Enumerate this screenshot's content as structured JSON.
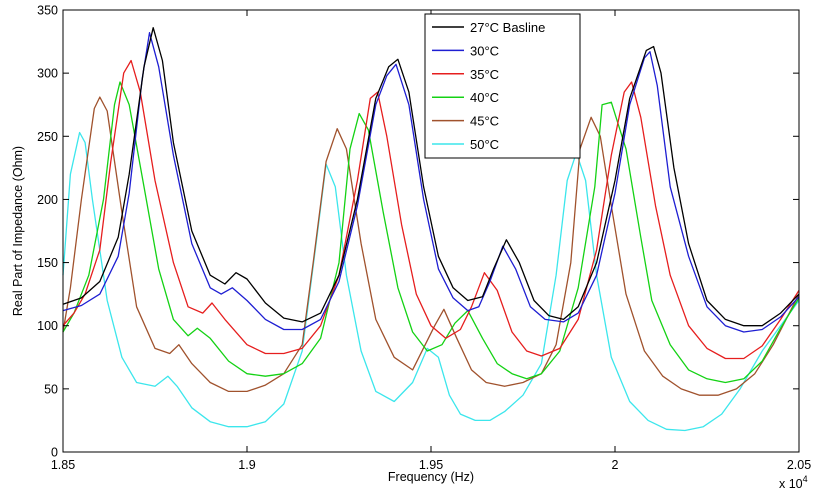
{
  "chart_data": {
    "type": "line",
    "xlabel": "Frequency (Hz)",
    "ylabel": "Real Part of Impedance (Ohm)",
    "x_exponent_label": "x 10",
    "x_exponent_power": "4",
    "xlim": [
      1.85,
      2.05
    ],
    "ylim": [
      0,
      350
    ],
    "x_ticks": [
      1.85,
      1.9,
      1.95,
      2.0,
      2.05
    ],
    "x_tick_labels": [
      "1.85",
      "1.9",
      "1.95",
      "2",
      "2.05"
    ],
    "y_ticks": [
      0,
      50,
      100,
      150,
      200,
      250,
      300,
      350
    ],
    "y_tick_labels": [
      "0",
      "50",
      "100",
      "150",
      "200",
      "250",
      "300",
      "350"
    ],
    "grid": false,
    "legend_position": "top-center",
    "series": [
      {
        "name": "27°C Basline",
        "color": "#000000",
        "x": [
          1.85,
          1.855,
          1.86,
          1.865,
          1.868,
          1.872,
          1.8745,
          1.877,
          1.88,
          1.885,
          1.89,
          1.894,
          1.897,
          1.9,
          1.905,
          1.91,
          1.915,
          1.92,
          1.925,
          1.93,
          1.935,
          1.9385,
          1.941,
          1.944,
          1.948,
          1.952,
          1.956,
          1.96,
          1.964,
          1.967,
          1.9705,
          1.974,
          1.978,
          1.982,
          1.986,
          1.99,
          1.995,
          2.0,
          2.004,
          2.0085,
          2.0105,
          2.0125,
          2.016,
          2.02,
          2.025,
          2.03,
          2.035,
          2.04,
          2.045,
          2.05
        ],
        "y": [
          117,
          122,
          135,
          170,
          220,
          305,
          336,
          310,
          245,
          175,
          140,
          133,
          142,
          137,
          118,
          106,
          103,
          110,
          140,
          200,
          280,
          305,
          311,
          285,
          210,
          155,
          130,
          120,
          123,
          145,
          168,
          150,
          120,
          108,
          105,
          115,
          150,
          215,
          280,
          318,
          321,
          300,
          225,
          165,
          120,
          105,
          100,
          100,
          110,
          125
        ]
      },
      {
        "name": "30°C",
        "color": "#1e1ed2",
        "x": [
          1.85,
          1.855,
          1.86,
          1.865,
          1.868,
          1.8715,
          1.8735,
          1.876,
          1.88,
          1.885,
          1.89,
          1.893,
          1.896,
          1.9,
          1.905,
          1.91,
          1.915,
          1.92,
          1.925,
          1.93,
          1.935,
          1.938,
          1.9405,
          1.944,
          1.948,
          1.952,
          1.956,
          1.96,
          1.963,
          1.966,
          1.9695,
          1.973,
          1.977,
          1.981,
          1.986,
          1.99,
          1.995,
          2.0,
          2.004,
          2.008,
          2.0095,
          2.0115,
          2.015,
          2.02,
          2.025,
          2.03,
          2.035,
          2.04,
          2.045,
          2.05
        ],
        "y": [
          112,
          116,
          125,
          155,
          205,
          295,
          332,
          305,
          235,
          165,
          130,
          125,
          130,
          120,
          105,
          97,
          97,
          105,
          135,
          195,
          275,
          298,
          307,
          275,
          200,
          145,
          122,
          112,
          115,
          135,
          163,
          145,
          115,
          105,
          103,
          110,
          140,
          205,
          275,
          312,
          317,
          290,
          210,
          155,
          115,
          100,
          95,
          97,
          107,
          123
        ]
      },
      {
        "name": "35°C",
        "color": "#e61e1e",
        "x": [
          1.85,
          1.853,
          1.856,
          1.86,
          1.863,
          1.8665,
          1.8685,
          1.871,
          1.875,
          1.88,
          1.884,
          1.888,
          1.8905,
          1.894,
          1.9,
          1.905,
          1.91,
          1.915,
          1.92,
          1.925,
          1.93,
          1.9335,
          1.9355,
          1.938,
          1.942,
          1.946,
          1.95,
          1.954,
          1.958,
          1.961,
          1.9645,
          1.968,
          1.972,
          1.976,
          1.98,
          1.985,
          1.99,
          1.995,
          1.999,
          2.0025,
          2.0045,
          2.007,
          2.011,
          2.015,
          2.02,
          2.025,
          2.03,
          2.035,
          2.04,
          2.045,
          2.05
        ],
        "y": [
          100,
          110,
          125,
          160,
          230,
          300,
          310,
          285,
          215,
          150,
          115,
          110,
          118,
          105,
          85,
          78,
          78,
          82,
          100,
          140,
          215,
          280,
          285,
          250,
          180,
          125,
          100,
          90,
          97,
          115,
          142,
          128,
          95,
          80,
          76,
          82,
          105,
          160,
          235,
          285,
          293,
          265,
          195,
          140,
          100,
          82,
          74,
          74,
          84,
          105,
          128
        ]
      },
      {
        "name": "40°C",
        "color": "#14d214",
        "x": [
          1.85,
          1.853,
          1.857,
          1.861,
          1.864,
          1.8655,
          1.868,
          1.872,
          1.876,
          1.88,
          1.884,
          1.8865,
          1.89,
          1.895,
          1.9,
          1.905,
          1.91,
          1.915,
          1.92,
          1.925,
          1.928,
          1.9305,
          1.933,
          1.937,
          1.941,
          1.945,
          1.949,
          1.953,
          1.9565,
          1.96,
          1.964,
          1.968,
          1.972,
          1.976,
          1.98,
          1.985,
          1.99,
          1.9945,
          1.9965,
          1.999,
          2.003,
          2.007,
          2.01,
          2.015,
          2.02,
          2.025,
          2.03,
          2.035,
          2.04,
          2.045,
          2.05
        ],
        "y": [
          95,
          110,
          140,
          200,
          275,
          293,
          275,
          210,
          145,
          105,
          92,
          98,
          90,
          72,
          62,
          60,
          62,
          70,
          90,
          150,
          240,
          268,
          255,
          190,
          130,
          95,
          80,
          85,
          102,
          112,
          90,
          70,
          62,
          58,
          62,
          80,
          130,
          210,
          275,
          277,
          240,
          170,
          120,
          85,
          65,
          58,
          55,
          58,
          72,
          98,
          122
        ]
      },
      {
        "name": "45°C",
        "color": "#a0522d",
        "x": [
          1.85,
          1.852,
          1.855,
          1.8585,
          1.86,
          1.862,
          1.866,
          1.87,
          1.875,
          1.879,
          1.8815,
          1.885,
          1.89,
          1.895,
          1.9,
          1.905,
          1.91,
          1.915,
          1.918,
          1.9215,
          1.9245,
          1.927,
          1.931,
          1.935,
          1.94,
          1.945,
          1.951,
          1.9535,
          1.957,
          1.961,
          1.965,
          1.97,
          1.975,
          1.98,
          1.984,
          1.988,
          1.9905,
          1.9935,
          1.996,
          1.999,
          2.003,
          2.008,
          2.013,
          2.018,
          2.023,
          2.028,
          2.033,
          2.038,
          2.043,
          2.05
        ],
        "y": [
          95,
          130,
          200,
          272,
          281,
          270,
          190,
          115,
          82,
          78,
          85,
          70,
          55,
          48,
          48,
          53,
          62,
          85,
          150,
          230,
          256,
          240,
          165,
          105,
          75,
          65,
          100,
          113,
          90,
          65,
          55,
          52,
          55,
          62,
          85,
          150,
          240,
          265,
          250,
          195,
          125,
          80,
          60,
          50,
          45,
          45,
          50,
          62,
          85,
          125
        ]
      },
      {
        "name": "50°C",
        "color": "#3ce6ec",
        "x": [
          1.85,
          1.852,
          1.8545,
          1.856,
          1.858,
          1.862,
          1.866,
          1.87,
          1.875,
          1.8785,
          1.881,
          1.885,
          1.89,
          1.895,
          1.9,
          1.905,
          1.91,
          1.915,
          1.919,
          1.9215,
          1.924,
          1.927,
          1.931,
          1.935,
          1.94,
          1.945,
          1.949,
          1.952,
          1.955,
          1.958,
          1.962,
          1.966,
          1.97,
          1.975,
          1.98,
          1.984,
          1.987,
          1.9895,
          1.992,
          1.995,
          1.999,
          2.004,
          2.009,
          2.014,
          2.019,
          2.024,
          2.029,
          2.034,
          2.04,
          2.045,
          2.05
        ],
        "y": [
          140,
          220,
          253,
          245,
          200,
          120,
          75,
          55,
          52,
          60,
          52,
          35,
          24,
          20,
          20,
          24,
          38,
          80,
          170,
          228,
          210,
          140,
          80,
          48,
          40,
          55,
          82,
          75,
          45,
          30,
          25,
          25,
          32,
          45,
          70,
          140,
          215,
          237,
          215,
          140,
          75,
          40,
          25,
          18,
          17,
          20,
          30,
          50,
          80,
          100,
          120
        ]
      }
    ]
  }
}
